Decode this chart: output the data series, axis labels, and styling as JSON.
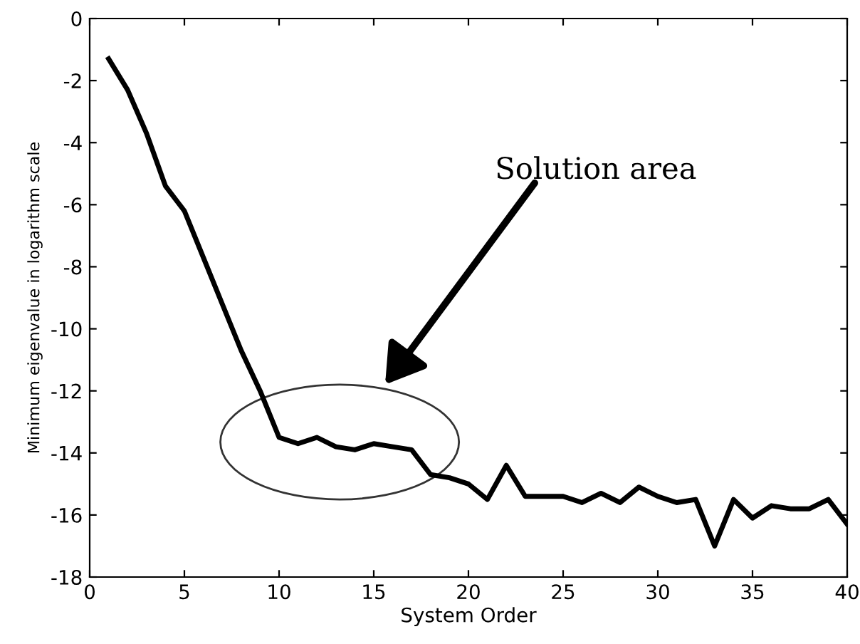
{
  "chart_data": {
    "type": "line",
    "xlabel": "System Order",
    "ylabel": "Minimum eigenvalue in logarithm scale",
    "x": [
      1,
      2,
      3,
      4,
      5,
      6,
      7,
      8,
      9,
      10,
      11,
      12,
      13,
      14,
      15,
      16,
      17,
      18,
      19,
      20,
      21,
      22,
      23,
      24,
      25,
      26,
      27,
      28,
      29,
      30,
      31,
      32,
      33,
      34,
      35,
      36,
      37,
      38,
      39,
      40
    ],
    "series": [
      {
        "color": "#000000",
        "values": [
          -1.3,
          -2.3,
          -3.7,
          -5.4,
          -6.2,
          -7.7,
          -9.2,
          -10.7,
          -12.0,
          -13.5,
          -13.7,
          -13.5,
          -13.8,
          -13.9,
          -13.7,
          -13.8,
          -13.9,
          -14.7,
          -14.8,
          -15.0,
          -15.5,
          -14.4,
          -15.4,
          -15.4,
          -15.4,
          -15.6,
          -15.3,
          -15.6,
          -15.1,
          -15.4,
          -15.6,
          -15.5,
          -17.0,
          -15.5,
          -16.1,
          -15.7,
          -15.8,
          -15.8,
          -15.5,
          -16.3
        ]
      }
    ],
    "annotations": [
      "Solution area"
    ],
    "xlim": [
      0,
      40
    ],
    "xticks": [
      0,
      5,
      10,
      15,
      20,
      25,
      30,
      35,
      40
    ],
    "ylim": [
      -18,
      0
    ],
    "yticks": [
      -18,
      -16,
      -14,
      -12,
      -10,
      -8,
      -6,
      -4,
      -2,
      0
    ],
    "grid": false,
    "legend": false,
    "marker": "none",
    "line_style": "solid"
  }
}
